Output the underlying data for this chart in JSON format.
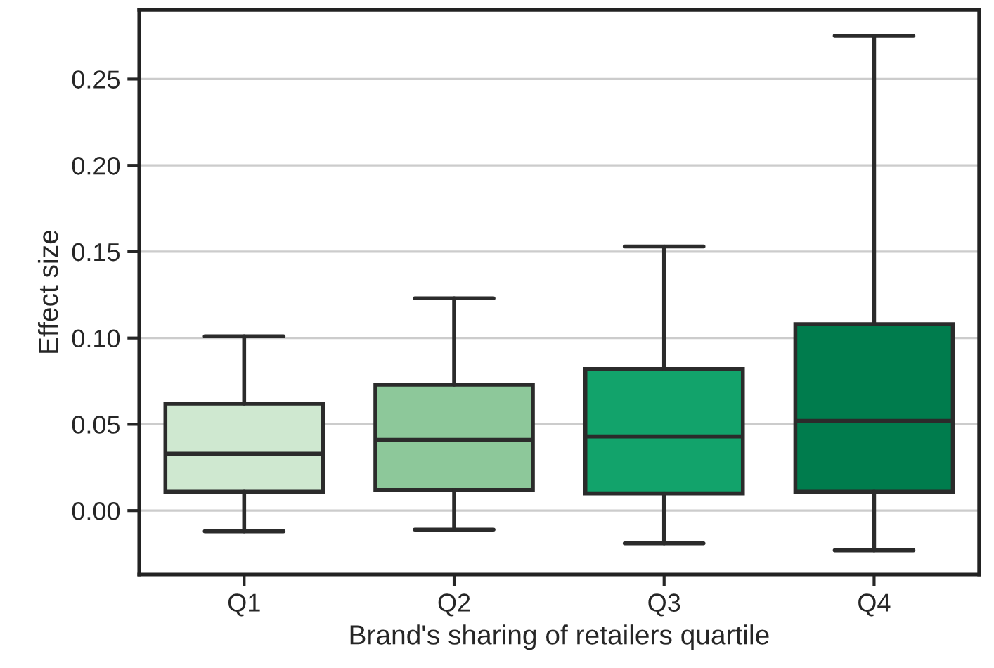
{
  "chart_data": {
    "type": "box",
    "xlabel": "Brand's sharing of retailers quartile",
    "ylabel": "Effect size",
    "categories": [
      "Q1",
      "Q2",
      "Q3",
      "Q4"
    ],
    "colors": [
      "#cfe8d0",
      "#8dc89a",
      "#12a36b",
      "#007c4d"
    ],
    "boxes": [
      {
        "low": -0.012,
        "q1": 0.011,
        "median": 0.033,
        "q3": 0.062,
        "high": 0.101
      },
      {
        "low": -0.011,
        "q1": 0.012,
        "median": 0.041,
        "q3": 0.073,
        "high": 0.123
      },
      {
        "low": -0.019,
        "q1": 0.01,
        "median": 0.043,
        "q3": 0.082,
        "high": 0.153
      },
      {
        "low": -0.023,
        "q1": 0.011,
        "median": 0.052,
        "q3": 0.108,
        "high": 0.275
      }
    ],
    "ylim": [
      -0.037,
      0.29
    ],
    "yticks": [
      {
        "value": 0,
        "label": "0.00"
      },
      {
        "value": 0.05,
        "label": "0.05"
      },
      {
        "value": 0.1,
        "label": "0.10"
      },
      {
        "value": 0.15,
        "label": "0.15"
      },
      {
        "value": 0.2,
        "label": "0.20"
      },
      {
        "value": 0.25,
        "label": "0.25"
      }
    ],
    "grid": "y"
  }
}
